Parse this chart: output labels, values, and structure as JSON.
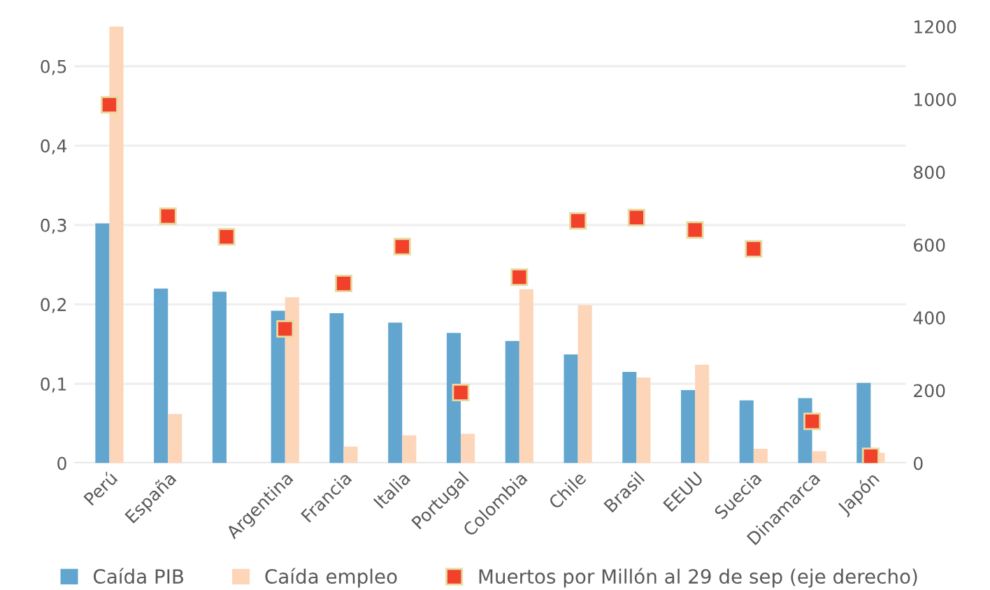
{
  "chart_data": {
    "type": "bar",
    "categories": [
      "Perú",
      "España",
      null,
      "Argentina",
      "Francia",
      "Italia",
      "Portugal",
      "Colombia",
      "Chile",
      "Brasil",
      "EEUU",
      "Suecia",
      "Dinamarca",
      "Japón"
    ],
    "series": [
      {
        "name": "Caída PIB",
        "color": "#62a6d0",
        "values": [
          0.302,
          0.22,
          0.216,
          0.192,
          0.189,
          0.177,
          0.164,
          0.154,
          0.137,
          0.115,
          0.092,
          0.079,
          0.082,
          0.101
        ]
      },
      {
        "name": "Caída empleo",
        "color": "#fdd5b8",
        "values": [
          0.55,
          0.062,
          null,
          0.209,
          0.021,
          0.035,
          0.037,
          0.219,
          0.199,
          0.108,
          0.124,
          0.018,
          0.015,
          0.013
        ]
      },
      {
        "name": "Muertos por Millón al 29 de sep (eje derecho)",
        "type": "scatter",
        "axis": "y2",
        "color": "#f2412a",
        "marker": "square",
        "values": [
          985,
          679,
          622,
          369,
          494,
          595,
          194,
          511,
          666,
          675,
          641,
          589,
          115,
          19
        ]
      }
    ],
    "ylim": [
      0,
      0.55
    ],
    "yticks": [
      {
        "value": 0,
        "label": "0"
      },
      {
        "value": 0.1,
        "label": "0,1"
      },
      {
        "value": 0.2,
        "label": "0,2"
      },
      {
        "value": 0.3,
        "label": "0,3"
      },
      {
        "value": 0.4,
        "label": "0,4"
      },
      {
        "value": 0.5,
        "label": "0,5"
      }
    ],
    "y2lim": [
      0,
      1200
    ],
    "y2ticks": [
      0,
      200,
      400,
      600,
      800,
      1000,
      1200
    ],
    "grid": "y",
    "legend": "bottom"
  }
}
